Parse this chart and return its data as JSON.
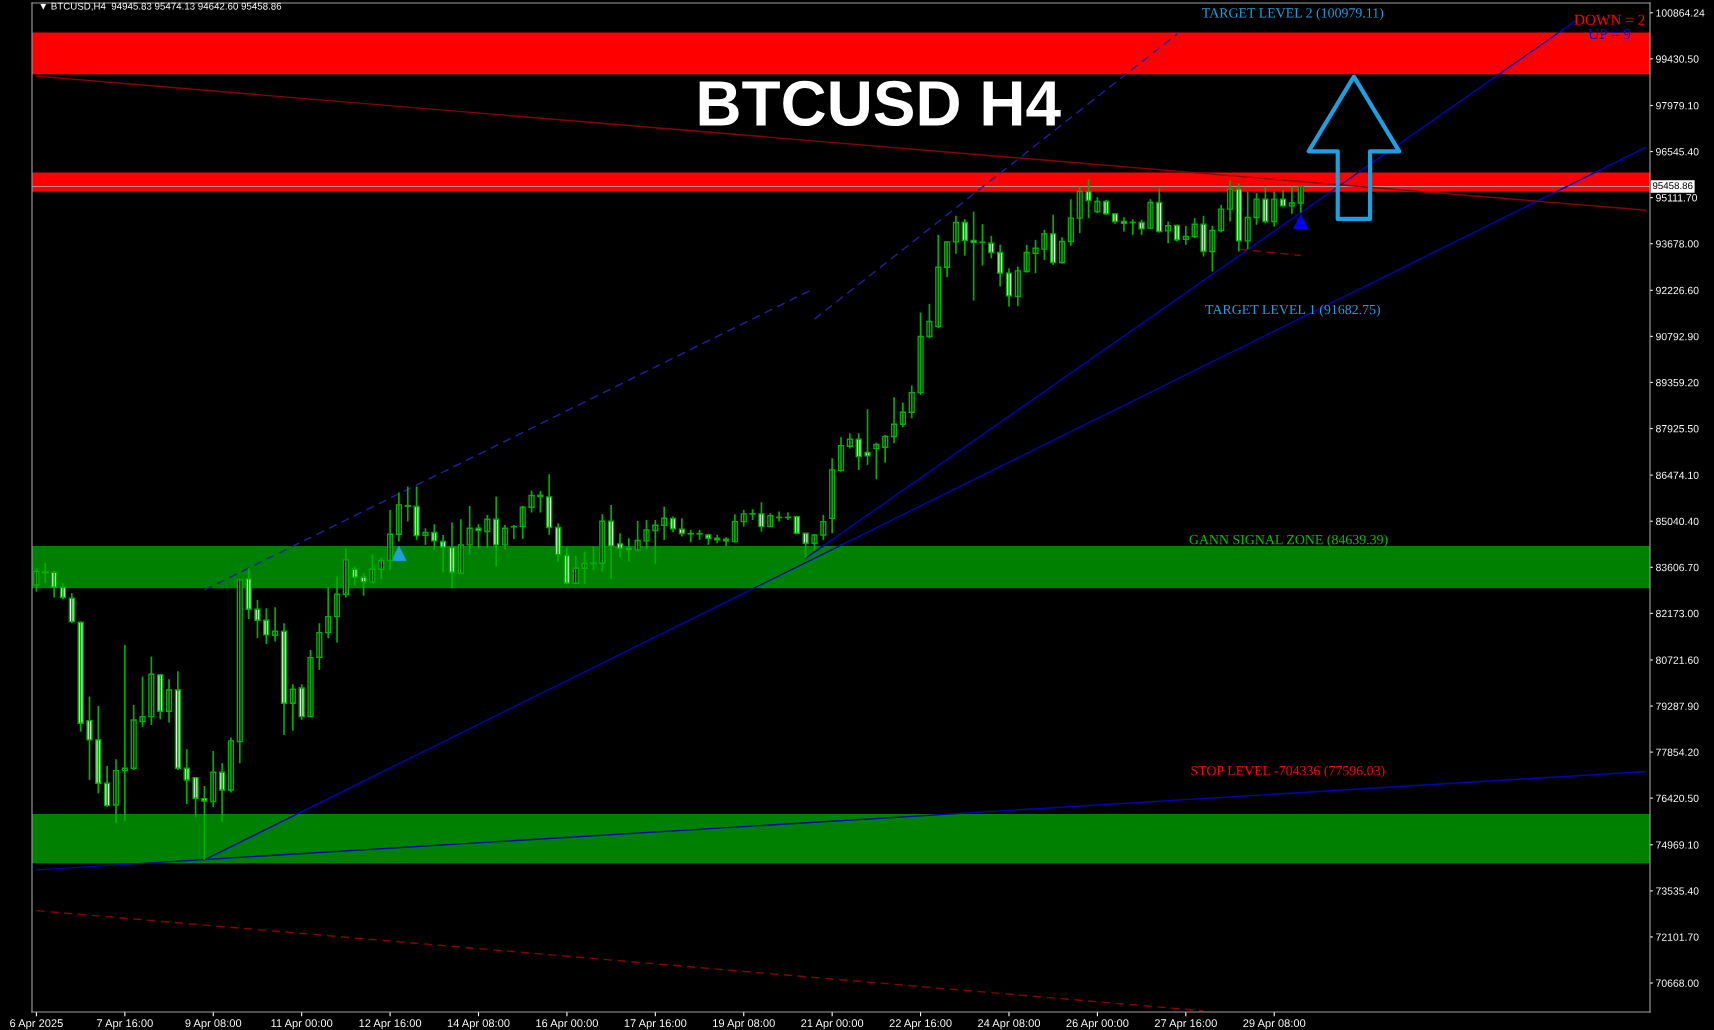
{
  "chart_data": {
    "type": "candlestick",
    "title": "BTCUSD H4",
    "color": "#00b000",
    "x": [
      "2025-04-06T00:00",
      "2025-04-06T04:00",
      "2025-04-06T08:00",
      "2025-04-06T12:00",
      "2025-04-06T16:00",
      "2025-04-06T20:00",
      "2025-04-07T00:00",
      "2025-04-07T04:00",
      "2025-04-07T08:00",
      "2025-04-07T12:00",
      "2025-04-07T16:00",
      "2025-04-07T20:00",
      "2025-04-08T00:00",
      "2025-04-08T04:00",
      "2025-04-08T08:00",
      "2025-04-08T12:00",
      "2025-04-08T16:00",
      "2025-04-08T20:00",
      "2025-04-09T00:00",
      "2025-04-09T04:00",
      "2025-04-09T08:00",
      "2025-04-09T12:00",
      "2025-04-09T16:00",
      "2025-04-09T20:00",
      "2025-04-10T00:00",
      "2025-04-10T04:00",
      "2025-04-10T08:00",
      "2025-04-10T12:00",
      "2025-04-10T16:00",
      "2025-04-10T20:00",
      "2025-04-11T00:00",
      "2025-04-11T04:00",
      "2025-04-11T08:00",
      "2025-04-11T12:00",
      "2025-04-11T16:00",
      "2025-04-11T20:00",
      "2025-04-12T00:00",
      "2025-04-12T04:00",
      "2025-04-12T08:00",
      "2025-04-12T12:00",
      "2025-04-12T16:00",
      "2025-04-12T20:00",
      "2025-04-13T00:00",
      "2025-04-13T04:00",
      "2025-04-13T08:00",
      "2025-04-13T12:00",
      "2025-04-13T16:00",
      "2025-04-13T20:00",
      "2025-04-14T00:00",
      "2025-04-14T04:00",
      "2025-04-14T08:00",
      "2025-04-14T12:00",
      "2025-04-14T16:00",
      "2025-04-14T20:00",
      "2025-04-15T00:00",
      "2025-04-15T04:00",
      "2025-04-15T08:00",
      "2025-04-15T12:00",
      "2025-04-15T16:00",
      "2025-04-15T20:00",
      "2025-04-16T00:00",
      "2025-04-16T04:00",
      "2025-04-16T08:00",
      "2025-04-16T12:00",
      "2025-04-16T16:00",
      "2025-04-16T20:00",
      "2025-04-17T00:00",
      "2025-04-17T04:00",
      "2025-04-17T08:00",
      "2025-04-17T12:00",
      "2025-04-17T16:00",
      "2025-04-17T20:00",
      "2025-04-18T00:00",
      "2025-04-18T04:00",
      "2025-04-18T08:00",
      "2025-04-18T12:00",
      "2025-04-18T16:00",
      "2025-04-18T20:00",
      "2025-04-19T00:00",
      "2025-04-19T04:00",
      "2025-04-19T08:00",
      "2025-04-19T12:00",
      "2025-04-19T16:00",
      "2025-04-19T20:00",
      "2025-04-20T00:00",
      "2025-04-20T04:00",
      "2025-04-20T08:00",
      "2025-04-20T12:00",
      "2025-04-20T16:00",
      "2025-04-20T20:00",
      "2025-04-21T00:00",
      "2025-04-21T04:00",
      "2025-04-21T08:00",
      "2025-04-21T12:00",
      "2025-04-21T16:00",
      "2025-04-21T20:00",
      "2025-04-22T00:00",
      "2025-04-22T04:00",
      "2025-04-22T08:00",
      "2025-04-22T12:00",
      "2025-04-22T16:00",
      "2025-04-22T20:00",
      "2025-04-23T00:00",
      "2025-04-23T04:00",
      "2025-04-23T08:00",
      "2025-04-23T12:00",
      "2025-04-23T16:00",
      "2025-04-23T20:00",
      "2025-04-24T00:00",
      "2025-04-24T04:00",
      "2025-04-24T08:00",
      "2025-04-24T12:00",
      "2025-04-24T16:00",
      "2025-04-24T20:00",
      "2025-04-25T00:00",
      "2025-04-25T04:00",
      "2025-04-25T08:00",
      "2025-04-25T12:00",
      "2025-04-25T16:00",
      "2025-04-25T20:00",
      "2025-04-26T00:00",
      "2025-04-26T04:00",
      "2025-04-26T08:00",
      "2025-04-26T12:00",
      "2025-04-26T16:00",
      "2025-04-26T20:00",
      "2025-04-27T00:00",
      "2025-04-27T04:00",
      "2025-04-27T08:00",
      "2025-04-27T12:00",
      "2025-04-27T16:00",
      "2025-04-27T20:00",
      "2025-04-28T00:00",
      "2025-04-28T04:00",
      "2025-04-28T08:00",
      "2025-04-28T12:00",
      "2025-04-28T16:00",
      "2025-04-28T20:00",
      "2025-04-29T00:00",
      "2025-04-29T04:00",
      "2025-04-29T08:00",
      "2025-04-29T12:00",
      "2025-04-29T16:00",
      "2025-04-29T20:00"
    ],
    "ohlc": [
      [
        83058,
        83577,
        82850,
        83473
      ],
      [
        83440,
        83732,
        83110,
        83460
      ],
      [
        83452,
        83494,
        82664,
        82985
      ],
      [
        82975,
        83110,
        82612,
        82664
      ],
      [
        82643,
        82799,
        81865,
        81916
      ],
      [
        81896,
        81916,
        78492,
        78751
      ],
      [
        78834,
        79582,
        76987,
        78233
      ],
      [
        78233,
        79291,
        76572,
        76884
      ],
      [
        76884,
        77423,
        76150,
        76188
      ],
      [
        76209,
        77631,
        75659,
        77278
      ],
      [
        77278,
        81190,
        75721,
        77350
      ],
      [
        77350,
        79322,
        77300,
        78855
      ],
      [
        78803,
        80204,
        78627,
        78959
      ],
      [
        78959,
        80827,
        78700,
        80277
      ],
      [
        80256,
        80287,
        78876,
        79125
      ],
      [
        79125,
        80121,
        78772,
        79789
      ],
      [
        79789,
        80370,
        77299,
        77350
      ],
      [
        77350,
        77942,
        76240,
        76987
      ],
      [
        77060,
        77060,
        75825,
        76417
      ],
      [
        76406,
        76800,
        74497,
        76334
      ],
      [
        76313,
        77890,
        76137,
        77225
      ],
      [
        77225,
        77506,
        75690,
        76676
      ],
      [
        76676,
        78305,
        76600,
        78202
      ],
      [
        78181,
        83214,
        77506,
        83214
      ],
      [
        83245,
        83577,
        81989,
        82300
      ],
      [
        82300,
        82591,
        81398,
        81958
      ],
      [
        81958,
        82331,
        81221,
        81501
      ],
      [
        81491,
        82363,
        81294,
        81616
      ],
      [
        81616,
        81865,
        78388,
        79374
      ],
      [
        79374,
        79966,
        78523,
        79810
      ],
      [
        79851,
        79966,
        78855,
        78959
      ],
      [
        78959,
        81034,
        78938,
        80796
      ],
      [
        80806,
        81865,
        80412,
        81574
      ],
      [
        81574,
        82975,
        81398,
        82072
      ],
      [
        82072,
        83317,
        81263,
        82767
      ],
      [
        82767,
        84199,
        82664,
        83836
      ],
      [
        83546,
        83629,
        83037,
        83297
      ],
      [
        83297,
        83421,
        82726,
        83151
      ],
      [
        83151,
        84013,
        83100,
        83546
      ],
      [
        83546,
        83919,
        83234,
        83816
      ],
      [
        83816,
        85393,
        83525,
        84635
      ],
      [
        84635,
        85932,
        84407,
        85548
      ],
      [
        85507,
        86119,
        85029,
        85527
      ],
      [
        85496,
        86119,
        84459,
        84593
      ],
      [
        84604,
        84822,
        84303,
        84687
      ],
      [
        84687,
        84946,
        84147,
        84427
      ],
      [
        84407,
        84614,
        83442,
        84230
      ],
      [
        84220,
        84998,
        82954,
        83452
      ],
      [
        83421,
        85102,
        83400,
        84303
      ],
      [
        84303,
        85517,
        83992,
        84822
      ],
      [
        84822,
        84946,
        84199,
        84749
      ],
      [
        84718,
        85237,
        84199,
        85102
      ],
      [
        85102,
        85808,
        83628,
        84303
      ],
      [
        84303,
        84926,
        84168,
        84822
      ],
      [
        84864,
        84926,
        84490,
        84874
      ],
      [
        84874,
        85517,
        84490,
        85475
      ],
      [
        85475,
        85994,
        85310,
        85839
      ],
      [
        85849,
        85984,
        85310,
        85807
      ],
      [
        85797,
        86503,
        84614,
        84843
      ],
      [
        84843,
        84978,
        83784,
        84002
      ],
      [
        83971,
        84220,
        83100,
        83110
      ],
      [
        83110,
        83960,
        83089,
        83577
      ],
      [
        83577,
        84095,
        83089,
        83722
      ],
      [
        83722,
        84251,
        83525,
        83732
      ],
      [
        83732,
        85258,
        83473,
        85040
      ],
      [
        85040,
        85548,
        83234,
        84272
      ],
      [
        84334,
        84666,
        83919,
        84199
      ],
      [
        84199,
        84510,
        83784,
        84147
      ],
      [
        84147,
        85050,
        84095,
        84438
      ],
      [
        84427,
        85081,
        84168,
        84770
      ],
      [
        84749,
        85081,
        83711,
        84915
      ],
      [
        84915,
        85496,
        84459,
        85133
      ],
      [
        85123,
        85185,
        84697,
        84801
      ],
      [
        84791,
        85133,
        84562,
        84656
      ],
      [
        84656,
        84770,
        84386,
        84645
      ],
      [
        84645,
        84770,
        84459,
        84656
      ],
      [
        84614,
        84635,
        84303,
        84510
      ],
      [
        84510,
        84614,
        84355,
        84459
      ],
      [
        84480,
        84542,
        84272,
        84427
      ],
      [
        84406,
        85257,
        84380,
        85029
      ],
      [
        85029,
        85392,
        84873,
        85267
      ],
      [
        85267,
        85413,
        85080,
        85277
      ],
      [
        85267,
        85630,
        84717,
        84873
      ],
      [
        84873,
        85288,
        84852,
        85215
      ],
      [
        85153,
        85340,
        85029,
        85163
      ],
      [
        85163,
        85319,
        85080,
        85153
      ],
      [
        85184,
        85205,
        84645,
        84665
      ],
      [
        84665,
        84665,
        83887,
        84354
      ],
      [
        84354,
        84645,
        84126,
        84613
      ],
      [
        84613,
        85236,
        84458,
        85029
      ],
      [
        85132,
        87000,
        84665,
        86637
      ],
      [
        86616,
        87654,
        86580,
        87394
      ],
      [
        87373,
        87779,
        87300,
        87592
      ],
      [
        87592,
        87779,
        86637,
        87052
      ],
      [
        87177,
        88526,
        86793,
        87073
      ],
      [
        87301,
        87488,
        86347,
        87426
      ],
      [
        87343,
        87727,
        86865,
        87675
      ],
      [
        87675,
        88899,
        87467,
        88059
      ],
      [
        88059,
        88733,
        87965,
        88432
      ],
      [
        88432,
        89262,
        88245,
        89044
      ],
      [
        89044,
        91535,
        88972,
        90788
      ],
      [
        90788,
        91805,
        90736,
        91255
      ],
      [
        91099,
        93953,
        91050,
        92946
      ],
      [
        92946,
        93735,
        92635,
        93735
      ],
      [
        93735,
        94544,
        93361,
        94337
      ],
      [
        94337,
        94440,
        93309,
        93776
      ],
      [
        93776,
        94679,
        91908,
        93714
      ],
      [
        93724,
        94285,
        92998,
        93714
      ],
      [
        93693,
        93922,
        93226,
        93403
      ],
      [
        93403,
        93641,
        92345,
        92760
      ],
      [
        92760,
        92915,
        91722,
        92054
      ],
      [
        92034,
        92967,
        91743,
        92832
      ],
      [
        92812,
        93642,
        92781,
        93403
      ],
      [
        93382,
        93797,
        92760,
        93538
      ],
      [
        93507,
        94109,
        93175,
        93984
      ],
      [
        93984,
        94576,
        93019,
        93092
      ],
      [
        93092,
        93881,
        93050,
        93746
      ],
      [
        93746,
        95064,
        93611,
        94472
      ],
      [
        94472,
        95458,
        94005,
        95302
      ],
      [
        95302,
        95686,
        94472,
        95022
      ],
      [
        94680,
        95126,
        94628,
        94991
      ],
      [
        94991,
        95043,
        94576,
        94607
      ],
      [
        94607,
        94628,
        94296,
        94368
      ],
      [
        94368,
        94503,
        94057,
        94316
      ],
      [
        94342,
        94441,
        93953,
        94332
      ],
      [
        94337,
        94420,
        93953,
        94140
      ],
      [
        94161,
        95064,
        94130,
        94960
      ],
      [
        94960,
        95406,
        94026,
        94057
      ],
      [
        94078,
        94368,
        93694,
        94234
      ],
      [
        94244,
        94265,
        93746,
        93798
      ],
      [
        93818,
        94234,
        93642,
        93901
      ],
      [
        93901,
        94472,
        93850,
        94285
      ],
      [
        94285,
        94545,
        93279,
        93434
      ],
      [
        93434,
        94234,
        92812,
        94088
      ],
      [
        94088,
        94887,
        94026,
        94752
      ],
      [
        94752,
        95645,
        94368,
        95375
      ],
      [
        95375,
        95562,
        93434,
        93766
      ],
      [
        93766,
        95302,
        93507,
        94493
      ],
      [
        94493,
        95250,
        94265,
        95064
      ],
      [
        95064,
        95458,
        94316,
        94368
      ],
      [
        94368,
        95302,
        94213,
        95064
      ],
      [
        95064,
        95333,
        94835,
        94856
      ],
      [
        94856,
        95458,
        94607,
        94945.83
      ],
      [
        94945.83,
        95474.13,
        94642.6,
        95458.86
      ]
    ],
    "series": [
      {
        "type": "line",
        "x": [
          "2025-04-09T04:00",
          "2025-04-20T16:00"
        ],
        "values": [
          82900,
          92290
        ],
        "color": "#2020a0",
        "line_style": "dashed"
      },
      {
        "type": "line",
        "x": [
          "2025-04-20T16:00",
          "2025-04-27T12:00"
        ],
        "values": [
          91330,
          100200
        ],
        "color": "#2020a0",
        "line_style": "dashed"
      },
      {
        "type": "line",
        "x": [
          "2025-04-09T04:00",
          "2025-05-06T08:00"
        ],
        "values": [
          74500,
          96670
        ],
        "color": "#0000c0",
        "line_style": "solid"
      },
      {
        "type": "line",
        "x": [
          "2025-04-20T12:00",
          "2025-05-05T00:00"
        ],
        "values": [
          83890,
          100600
        ],
        "color": "#0000c0",
        "line_style": "solid"
      },
      {
        "type": "line",
        "x": [
          "2025-04-06T00:00",
          "2025-05-06T08:00"
        ],
        "values": [
          74190,
          77250
        ],
        "color": "#0000c0",
        "line_style": "solid"
      },
      {
        "type": "line",
        "x": [
          "2025-04-06T00:00",
          "2025-05-06T08:00"
        ],
        "values": [
          98890,
          94720
        ],
        "color": "#8b0000",
        "line_style": "solid"
      },
      {
        "type": "line",
        "x": [
          "2025-04-06T00:00",
          "2025-04-28T00:00"
        ],
        "values": [
          72920,
          69800
        ],
        "color": "#8b0000",
        "line_style": "dashed"
      },
      {
        "type": "line",
        "x": [
          "2025-04-28T16:00",
          "2025-04-29T20:00"
        ],
        "values": [
          93510,
          93310
        ],
        "color": "#8b0000",
        "line_style": "dashed"
      },
      {
        "type": "scatter",
        "x": [
          "2025-04-12T20:00",
          "2025-04-29T20:00"
        ],
        "values": [
          84040,
          94370
        ],
        "colors": [
          "#1ea0e0",
          "#0000ff"
        ],
        "marker": "triangle"
      }
    ],
    "bands": [
      {
        "axis": "y",
        "from": 98955,
        "to": 100248,
        "color": "#ff0000"
      },
      {
        "axis": "y",
        "from": 95292,
        "to": 95894,
        "color": "#ff0000"
      },
      {
        "axis": "y",
        "from": 82954,
        "to": 84272,
        "color": "#008000"
      },
      {
        "axis": "y",
        "from": 74393,
        "to": 75929,
        "color": "#008000"
      }
    ],
    "ref_lines": [
      {
        "axis": "y",
        "value": 95458.86,
        "label": "95458.86",
        "color": "#9a9a9a"
      }
    ],
    "annotations": [
      "▼ BTCUSD,H4  94945.83 95474.13 94642.60 95458.86",
      "DOWN = 2",
      "UP = 9",
      "TARGET LEVEL 2 (100979.11)",
      "TARGET LEVEL 1 (91682.75)",
      "GANN SIGNAL ZONE (84639.39)",
      "STOP LEVEL -704336 (77596.03)"
    ],
    "xlim": [
      "2025-04-05T22:00",
      "2025-05-06T10:00"
    ],
    "xticks": [
      {
        "value": "2025-04-06T00:00",
        "label": "6 Apr 2025"
      },
      {
        "value": "2025-04-07T16:00",
        "label": "7 Apr 16:00"
      },
      {
        "value": "2025-04-09T08:00",
        "label": "9 Apr 08:00"
      },
      {
        "value": "2025-04-11T00:00",
        "label": "11 Apr 00:00"
      },
      {
        "value": "2025-04-12T16:00",
        "label": "12 Apr 16:00"
      },
      {
        "value": "2025-04-14T08:00",
        "label": "14 Apr 08:00"
      },
      {
        "value": "2025-04-16T00:00",
        "label": "16 Apr 00:00"
      },
      {
        "value": "2025-04-17T16:00",
        "label": "17 Apr 16:00"
      },
      {
        "value": "2025-04-19T08:00",
        "label": "19 Apr 08:00"
      },
      {
        "value": "2025-04-21T00:00",
        "label": "21 Apr 00:00"
      },
      {
        "value": "2025-04-22T16:00",
        "label": "22 Apr 16:00"
      },
      {
        "value": "2025-04-24T08:00",
        "label": "24 Apr 08:00"
      },
      {
        "value": "2025-04-26T00:00",
        "label": "26 Apr 00:00"
      },
      {
        "value": "2025-04-27T16:00",
        "label": "27 Apr 16:00"
      },
      {
        "value": "2025-04-29T08:00",
        "label": "29 Apr 08:00"
      }
    ],
    "ylim": [
      69765,
      101169
    ],
    "yticks": [
      100864.24,
      {
        "value": 99430.5,
        "label": "99430.50"
      },
      {
        "value": 97979.1,
        "label": "97979.10"
      },
      {
        "value": 96545.4,
        "label": "96545.40"
      },
      {
        "value": 95111.7,
        "label": "95111.70"
      },
      {
        "value": 93678,
        "label": "93678.00"
      },
      {
        "value": 92226.6,
        "label": "92226.60"
      },
      {
        "value": 90792.9,
        "label": "90792.90"
      },
      {
        "value": 89359.2,
        "label": "89359.20"
      },
      {
        "value": 87925.5,
        "label": "87925.50"
      },
      {
        "value": 86474.1,
        "label": "86474.10"
      },
      {
        "value": 85040.4,
        "label": "85040.40"
      },
      {
        "value": 83606.7,
        "label": "83606.70"
      },
      {
        "value": 82173,
        "label": "82173.00"
      },
      {
        "value": 80721.6,
        "label": "80721.60"
      },
      {
        "value": 79287.9,
        "label": "79287.90"
      },
      {
        "value": 77854.2,
        "label": "77854.20"
      },
      {
        "value": 76420.5,
        "label": "76420.50"
      },
      {
        "value": 74969.1,
        "label": "74969.10"
      },
      {
        "value": 73535.4,
        "label": "73535.40"
      },
      {
        "value": 72101.7,
        "label": "72101.70"
      },
      {
        "value": 70668,
        "label": "70668.00"
      }
    ]
  }
}
